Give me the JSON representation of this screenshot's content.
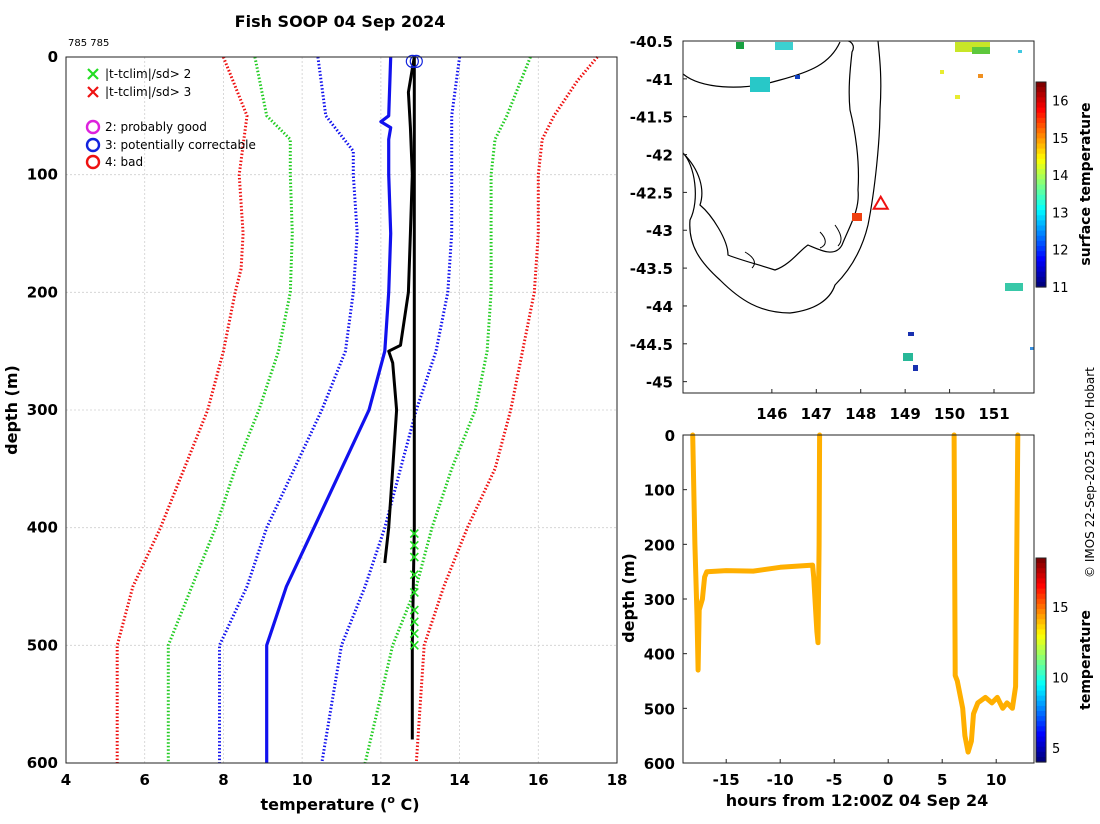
{
  "title": "Fish SOOP 04 Sep 2024",
  "tag": "785 785",
  "copyright": "© IMOS 22-Sep-2025 13:20 Hobart",
  "legend": [
    {
      "label": "|t-tclim|/sd> 2",
      "marker": "x",
      "color": "#22dd22"
    },
    {
      "label": "|t-tclim|/sd> 3",
      "marker": "x",
      "color": "#ee1111"
    },
    {
      "label": "2: probably good",
      "marker": "o",
      "color": "#dd22dd"
    },
    {
      "label": "3: potentially correctable",
      "marker": "o",
      "color": "#1122dd"
    },
    {
      "label": "4: bad",
      "marker": "o",
      "color": "#ee1111"
    }
  ],
  "chart_data": [
    {
      "type": "line",
      "name": "profile",
      "xlabel": "temperature (",
      "xlabel_sup": "o",
      "xlabel_tail": " C)",
      "ylabel": "depth (m)",
      "xlim": [
        4,
        18
      ],
      "ylim": [
        0,
        600
      ],
      "xticks": [
        4,
        6,
        8,
        10,
        12,
        14,
        16,
        18
      ],
      "yticks": [
        0,
        100,
        200,
        300,
        400,
        500,
        600
      ],
      "grid": true,
      "series": [
        {
          "name": "clim -3sd",
          "color": "#ee1111",
          "style": "dotted",
          "depth": [
            0,
            50,
            100,
            150,
            180,
            200,
            250,
            300,
            350,
            400,
            450,
            500,
            600
          ],
          "temp": [
            8.0,
            8.6,
            8.4,
            8.5,
            8.45,
            8.3,
            8.0,
            7.6,
            7.0,
            6.4,
            5.7,
            5.3,
            5.3
          ]
        },
        {
          "name": "clim -2sd",
          "color": "#22cc22",
          "style": "dotted",
          "depth": [
            0,
            50,
            70,
            100,
            150,
            200,
            250,
            300,
            350,
            400,
            450,
            500,
            600
          ],
          "temp": [
            8.8,
            9.1,
            9.7,
            9.7,
            9.75,
            9.7,
            9.4,
            8.9,
            8.3,
            7.8,
            7.2,
            6.6,
            6.6
          ]
        },
        {
          "name": "clim mean -1sd",
          "color": "#1111ee",
          "style": "dotted",
          "depth": [
            0,
            50,
            80,
            100,
            150,
            200,
            250,
            300,
            350,
            400,
            450,
            500,
            600
          ],
          "temp": [
            10.4,
            10.6,
            11.3,
            11.3,
            11.4,
            11.3,
            11.1,
            10.5,
            9.8,
            9.1,
            8.6,
            7.9,
            7.9
          ]
        },
        {
          "name": "clim mean",
          "color": "#1111ee",
          "style": "solid",
          "depth": [
            0,
            50,
            55,
            60,
            70,
            100,
            150,
            200,
            250,
            300,
            350,
            400,
            450,
            500,
            600
          ],
          "temp": [
            12.25,
            12.2,
            12.0,
            12.25,
            12.2,
            12.2,
            12.25,
            12.2,
            12.1,
            11.7,
            11.0,
            10.3,
            9.6,
            9.1,
            9.1
          ]
        },
        {
          "name": "clim +1sd",
          "color": "#1111ee",
          "style": "dotted",
          "depth": [
            0,
            50,
            100,
            150,
            200,
            250,
            300,
            350,
            400,
            450,
            500,
            600
          ],
          "temp": [
            14.0,
            13.8,
            13.8,
            13.8,
            13.7,
            13.4,
            12.9,
            12.5,
            12.1,
            11.6,
            11.0,
            10.5
          ]
        },
        {
          "name": "clim +2sd",
          "color": "#22cc22",
          "style": "dotted",
          "depth": [
            0,
            50,
            70,
            100,
            150,
            200,
            250,
            300,
            350,
            400,
            450,
            500,
            600
          ],
          "temp": [
            15.8,
            15.2,
            14.9,
            14.8,
            14.8,
            14.8,
            14.7,
            14.4,
            13.8,
            13.3,
            12.9,
            12.3,
            11.6
          ]
        },
        {
          "name": "clim +3sd",
          "color": "#ee1111",
          "style": "dotted",
          "depth": [
            0,
            20,
            50,
            70,
            100,
            150,
            200,
            250,
            300,
            350,
            400,
            450,
            500,
            600
          ],
          "temp": [
            17.5,
            17.0,
            16.4,
            16.1,
            16.0,
            16.0,
            15.9,
            15.6,
            15.3,
            14.9,
            14.2,
            13.6,
            13.1,
            12.9
          ]
        },
        {
          "name": "observed",
          "color": "#000000",
          "style": "solid",
          "depth": [
            0,
            30,
            60,
            100,
            150,
            200,
            245,
            250,
            260,
            300,
            350,
            400,
            430
          ],
          "temp": [
            12.85,
            12.7,
            12.75,
            12.8,
            12.75,
            12.7,
            12.5,
            12.2,
            12.3,
            12.4,
            12.3,
            12.2,
            12.1
          ]
        },
        {
          "name": "observed 2",
          "color": "#000000",
          "style": "solid",
          "depth": [
            0,
            100,
            200,
            300,
            400,
            500,
            580
          ],
          "temp": [
            12.85,
            12.85,
            12.85,
            12.85,
            12.85,
            12.8,
            12.8
          ]
        }
      ],
      "flag_points": {
        "name": "|t-tclim|/sd> 2",
        "color": "#22dd22",
        "temp": 12.85,
        "depth": [
          405,
          415,
          425,
          440,
          455,
          470,
          480,
          490,
          500
        ]
      },
      "qc_circles": [
        {
          "temp": 12.8,
          "depth": 2,
          "color": "#1122dd"
        },
        {
          "temp": 12.9,
          "depth": 2,
          "color": "#1122dd"
        }
      ]
    },
    {
      "type": "heatmap",
      "name": "map",
      "xlim": [
        144,
        151.9
      ],
      "ylim": [
        -45.15,
        -40.5
      ],
      "xticks": [
        146,
        147,
        148,
        149,
        150,
        151
      ],
      "yticks": [
        -40.5,
        -41,
        -41.5,
        -42,
        -42.5,
        -43,
        -43.5,
        -44,
        -44.5,
        -45
      ],
      "colorbar_label": "surface temperature",
      "colorbar_ticks": [
        11,
        12,
        13,
        14,
        15,
        16
      ],
      "colorbar_range": [
        11,
        16.5
      ],
      "marker": {
        "lon": 148.45,
        "lat": -42.65
      }
    },
    {
      "type": "line",
      "name": "timeseries",
      "xlabel": "hours from 12:00Z 04 Sep 24",
      "ylabel": "depth (m)",
      "xlim": [
        -19,
        13.5
      ],
      "ylim": [
        0,
        600
      ],
      "xticks": [
        -15,
        -10,
        -5,
        0,
        5,
        10
      ],
      "yticks": [
        0,
        100,
        200,
        300,
        400,
        500,
        600
      ],
      "colorbar_label": "temperature",
      "colorbar_ticks": [
        5,
        10,
        15
      ],
      "colorbar_range": [
        4,
        18.5
      ],
      "segments": [
        {
          "hours": [
            -18.1,
            -17.9,
            -17.7,
            -17.6,
            -17.5,
            -17.2,
            -17.0,
            -16.8,
            -15,
            -12.5,
            -10,
            -7,
            -6.9,
            -6.6,
            -6.5,
            -6.4,
            -6.35
          ],
          "depth": [
            0,
            200,
            330,
            430,
            320,
            300,
            260,
            250,
            248,
            249,
            242,
            238,
            260,
            360,
            380,
            200,
            0
          ]
        },
        {
          "hours": [
            6.1,
            6.2,
            6.4,
            6.9,
            7.1,
            7.4,
            7.7,
            7.9,
            8.3,
            9.0,
            9.6,
            10.1,
            10.6,
            11.0,
            11.5,
            11.8,
            12.0
          ],
          "depth": [
            0,
            440,
            450,
            500,
            550,
            580,
            560,
            510,
            490,
            480,
            490,
            480,
            500,
            490,
            500,
            460,
            0
          ]
        }
      ],
      "value_temp": 14.2
    }
  ]
}
